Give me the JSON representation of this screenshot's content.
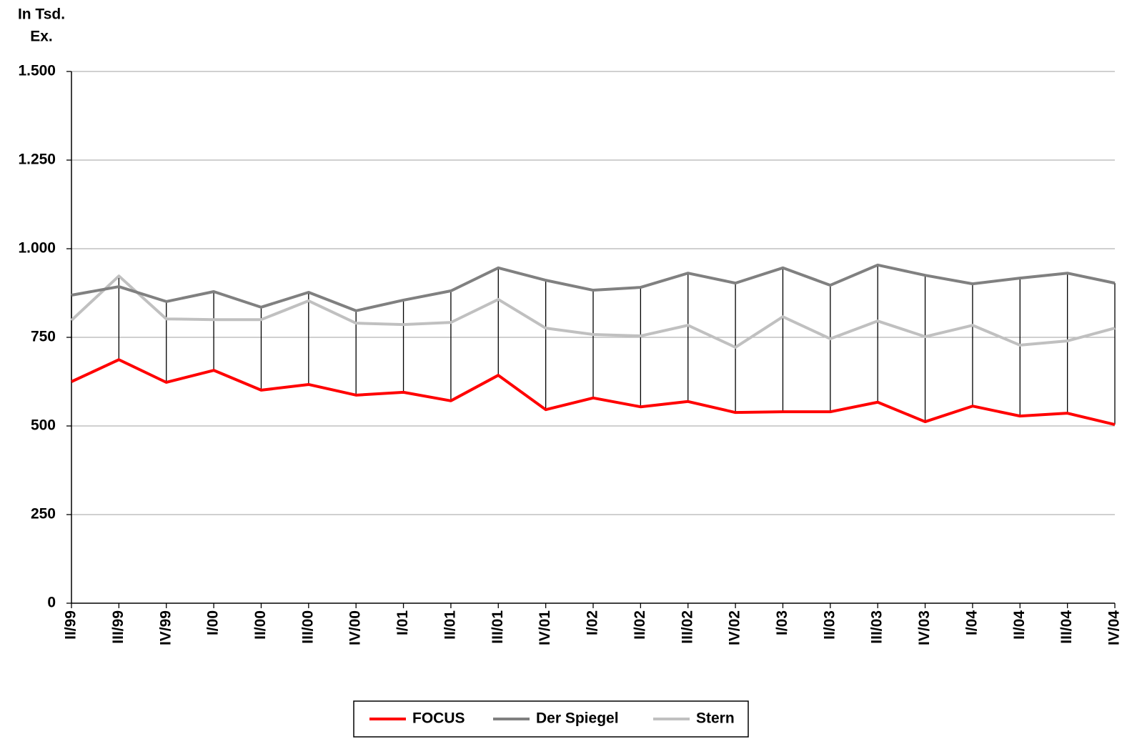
{
  "chart_data": {
    "type": "line",
    "y_label": [
      "In Tsd.",
      "Ex."
    ],
    "categories": [
      "II/99",
      "III/99",
      "IV/99",
      "I/00",
      "II/00",
      "III/00",
      "IV/00",
      "I/01",
      "II/01",
      "III/01",
      "IV/01",
      "I/02",
      "II/02",
      "III/02",
      "IV/02",
      "I/03",
      "II/03",
      "III/03",
      "IV/03",
      "I/04",
      "II/04",
      "III/04",
      "IV/04"
    ],
    "series": [
      {
        "name": "FOCUS",
        "color": "#ff0000",
        "values": [
          625,
          687,
          623,
          657,
          601,
          617,
          587,
          595,
          571,
          643,
          546,
          579,
          554,
          569,
          538,
          540,
          540,
          567,
          512,
          556,
          528,
          536,
          504
        ]
      },
      {
        "name": "Der Spiegel",
        "color": "#808080",
        "values": [
          869,
          893,
          851,
          879,
          835,
          877,
          825,
          855,
          881,
          946,
          911,
          883,
          891,
          931,
          903,
          946,
          897,
          954,
          925,
          901,
          917,
          931,
          903
        ]
      },
      {
        "name": "Stern",
        "color": "#c0c0c0",
        "values": [
          798,
          923,
          802,
          800,
          800,
          853,
          790,
          786,
          792,
          857,
          776,
          758,
          754,
          784,
          722,
          808,
          746,
          796,
          752,
          784,
          728,
          740,
          776
        ]
      }
    ],
    "ylim": [
      0,
      1500
    ],
    "yticks": [
      0,
      250,
      500,
      750,
      {
        "value": 1000,
        "label": "1.000"
      },
      {
        "value": 1250,
        "label": "1.250"
      },
      {
        "value": 1500,
        "label": "1.500"
      }
    ],
    "grid": true,
    "high_low_lines": true,
    "legend": "bottom"
  }
}
